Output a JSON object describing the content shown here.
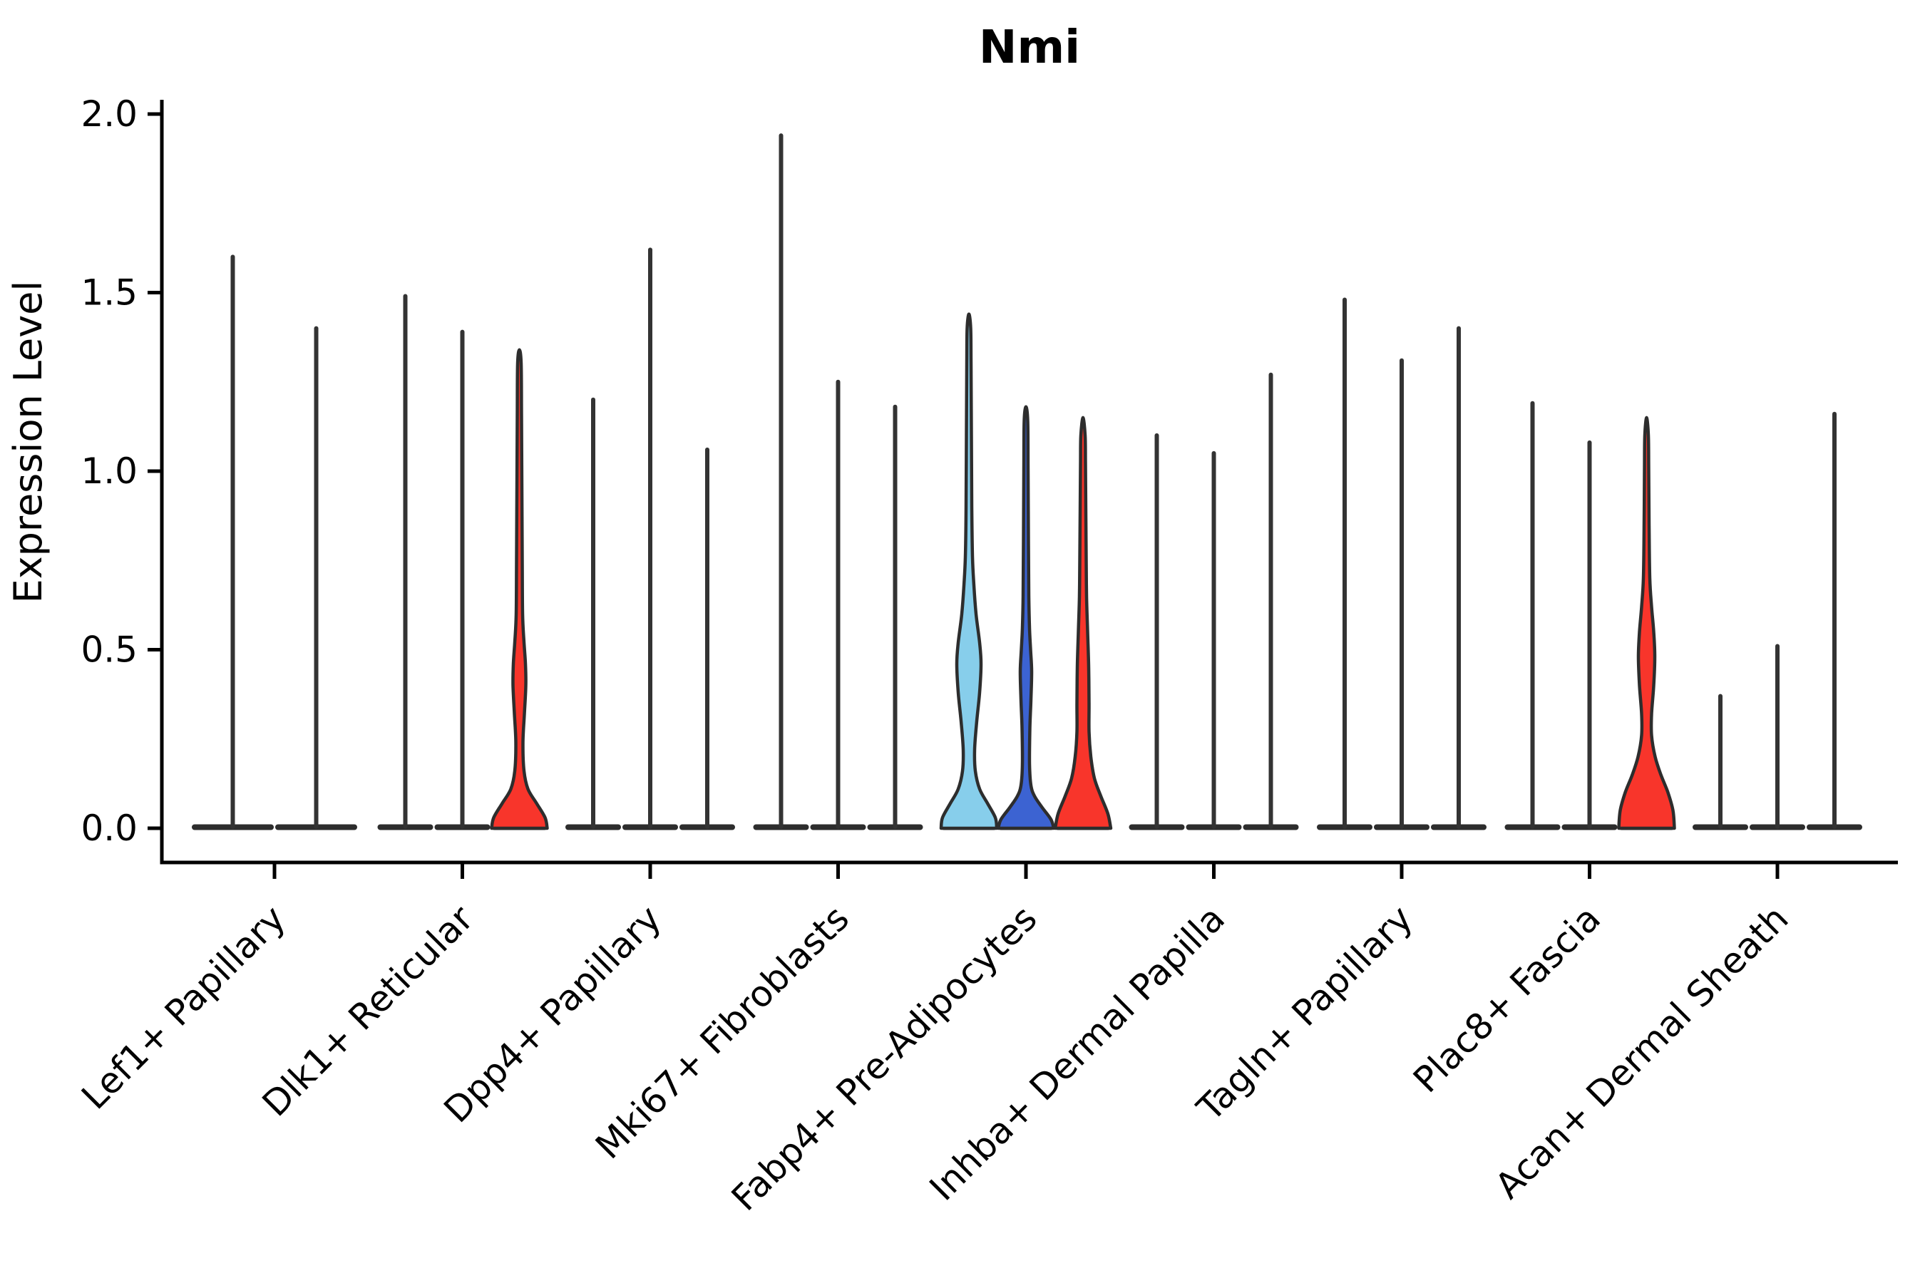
{
  "chart_data": {
    "type": "violin",
    "title": "Nmi",
    "ylabel": "Expression Level",
    "xlabel": "",
    "ylim": [
      0.0,
      2.0
    ],
    "ytick_labels": [
      "0.0",
      "0.5",
      "1.0",
      "1.5",
      "2.0"
    ],
    "ytick_values": [
      0.0,
      0.5,
      1.0,
      1.5,
      2.0
    ],
    "grid": false,
    "legend": "none",
    "categories": [
      "Lef1+ Papillary",
      "Dlk1+ Reticular",
      "Dpp4+ Papillary",
      "Mki67+ Fibroblasts",
      "Fabp4+ Pre-Adipocytes",
      "Inhba+ Dermal Papilla",
      "Tagln+ Papillary",
      "Plac8+ Fascia",
      "Acan+ Dermal Sheath"
    ],
    "palette": {
      "plain": "none",
      "light_blue": "#87CEEB",
      "dark_blue": "#3C63D2",
      "red": "#F8352B",
      "violin_stroke": "#2D2D2D",
      "spike_color": "#333333",
      "axis_color": "#000000"
    },
    "groups": [
      {
        "category": "Lef1+ Papillary",
        "violins": [
          {
            "max_expression": 1.6,
            "fill": "plain"
          },
          {
            "max_expression": 1.4,
            "fill": "plain"
          }
        ]
      },
      {
        "category": "Dlk1+ Reticular",
        "violins": [
          {
            "max_expression": 1.49,
            "fill": "plain"
          },
          {
            "max_expression": 1.39,
            "fill": "plain"
          },
          {
            "max_expression": 1.34,
            "fill": "red",
            "profile": "red_dlk1"
          }
        ]
      },
      {
        "category": "Dpp4+ Papillary",
        "violins": [
          {
            "max_expression": 1.2,
            "fill": "plain"
          },
          {
            "max_expression": 1.62,
            "fill": "plain"
          },
          {
            "max_expression": 1.06,
            "fill": "plain"
          }
        ]
      },
      {
        "category": "Mki67+ Fibroblasts",
        "violins": [
          {
            "max_expression": 1.94,
            "fill": "plain"
          },
          {
            "max_expression": 1.25,
            "fill": "plain"
          },
          {
            "max_expression": 1.18,
            "fill": "plain"
          }
        ]
      },
      {
        "category": "Fabp4+ Pre-Adipocytes",
        "violins": [
          {
            "max_expression": 1.44,
            "fill": "light_blue",
            "profile": "lightblue_fabp4"
          },
          {
            "max_expression": 1.18,
            "fill": "dark_blue",
            "profile": "darkblue_fabp4"
          },
          {
            "max_expression": 1.15,
            "fill": "red",
            "profile": "red_fabp4"
          }
        ]
      },
      {
        "category": "Inhba+ Dermal Papilla",
        "violins": [
          {
            "max_expression": 1.1,
            "fill": "plain"
          },
          {
            "max_expression": 1.05,
            "fill": "plain"
          },
          {
            "max_expression": 1.27,
            "fill": "plain"
          }
        ]
      },
      {
        "category": "Tagln+ Papillary",
        "violins": [
          {
            "max_expression": 1.48,
            "fill": "plain"
          },
          {
            "max_expression": 1.31,
            "fill": "plain"
          },
          {
            "max_expression": 1.4,
            "fill": "plain"
          }
        ]
      },
      {
        "category": "Plac8+ Fascia",
        "violins": [
          {
            "max_expression": 1.19,
            "fill": "plain"
          },
          {
            "max_expression": 1.08,
            "fill": "plain"
          },
          {
            "max_expression": 1.15,
            "fill": "red",
            "profile": "red_plac8"
          }
        ]
      },
      {
        "category": "Acan+ Dermal Sheath",
        "violins": [
          {
            "max_expression": 0.37,
            "fill": "plain"
          },
          {
            "max_expression": 0.51,
            "fill": "plain"
          },
          {
            "max_expression": 1.16,
            "fill": "plain"
          }
        ]
      }
    ],
    "profiles": {
      "lightblue_fabp4": [
        [
          0,
          39
        ],
        [
          0.03,
          37
        ],
        [
          0.07,
          26
        ],
        [
          0.11,
          15
        ],
        [
          0.16,
          9
        ],
        [
          0.22,
          8
        ],
        [
          0.3,
          11
        ],
        [
          0.38,
          15
        ],
        [
          0.46,
          17
        ],
        [
          0.52,
          15
        ],
        [
          0.6,
          10
        ],
        [
          0.68,
          7
        ],
        [
          0.76,
          5
        ],
        [
          0.9,
          4
        ],
        [
          1.1,
          3.5
        ],
        [
          1.3,
          3
        ],
        [
          1.4,
          2.5
        ],
        [
          1.44,
          0
        ]
      ],
      "darkblue_fabp4": [
        [
          0,
          39
        ],
        [
          0.025,
          35
        ],
        [
          0.06,
          22
        ],
        [
          0.09,
          12
        ],
        [
          0.12,
          7
        ],
        [
          0.18,
          5
        ],
        [
          0.28,
          5.5
        ],
        [
          0.36,
          7
        ],
        [
          0.44,
          8
        ],
        [
          0.5,
          6.5
        ],
        [
          0.56,
          5
        ],
        [
          0.65,
          4
        ],
        [
          0.8,
          3.5
        ],
        [
          1.0,
          3
        ],
        [
          1.14,
          2.5
        ],
        [
          1.18,
          0
        ]
      ],
      "red_fabp4": [
        [
          0,
          39
        ],
        [
          0.04,
          35
        ],
        [
          0.09,
          25
        ],
        [
          0.14,
          16
        ],
        [
          0.2,
          11
        ],
        [
          0.27,
          8.5
        ],
        [
          0.35,
          8.5
        ],
        [
          0.45,
          8
        ],
        [
          0.55,
          6.5
        ],
        [
          0.65,
          5
        ],
        [
          0.75,
          4.5
        ],
        [
          0.88,
          4
        ],
        [
          1.02,
          3.5
        ],
        [
          1.1,
          3
        ],
        [
          1.15,
          0
        ]
      ],
      "red_dlk1": [
        [
          0,
          39
        ],
        [
          0.03,
          36
        ],
        [
          0.07,
          24
        ],
        [
          0.11,
          12
        ],
        [
          0.16,
          6.5
        ],
        [
          0.24,
          5
        ],
        [
          0.32,
          7
        ],
        [
          0.4,
          9
        ],
        [
          0.46,
          8.5
        ],
        [
          0.52,
          6.5
        ],
        [
          0.6,
          4.5
        ],
        [
          0.75,
          4
        ],
        [
          0.95,
          3.5
        ],
        [
          1.15,
          3
        ],
        [
          1.3,
          2.5
        ],
        [
          1.34,
          0
        ]
      ],
      "red_plac8": [
        [
          0,
          39
        ],
        [
          0.05,
          37
        ],
        [
          0.1,
          30
        ],
        [
          0.15,
          20
        ],
        [
          0.2,
          12
        ],
        [
          0.26,
          7
        ],
        [
          0.32,
          7
        ],
        [
          0.4,
          10
        ],
        [
          0.48,
          11.5
        ],
        [
          0.55,
          10
        ],
        [
          0.62,
          7
        ],
        [
          0.7,
          4.5
        ],
        [
          0.85,
          3.5
        ],
        [
          1.0,
          3
        ],
        [
          1.1,
          2.5
        ],
        [
          1.15,
          0
        ]
      ]
    }
  }
}
